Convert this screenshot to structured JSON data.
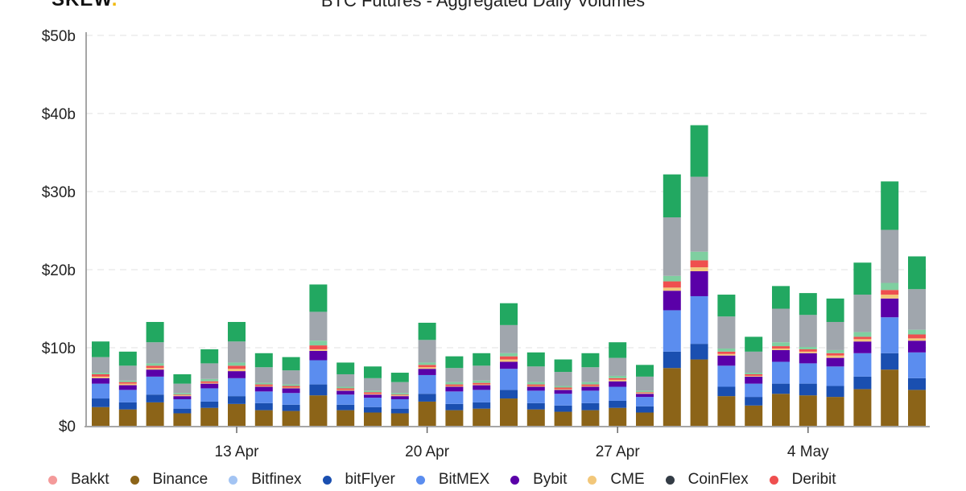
{
  "logo": "SKEW",
  "chart_data": {
    "type": "bar",
    "stacked": true,
    "title": "BTC Futures - Aggregated Daily Volumes",
    "ylim": [
      0,
      50
    ],
    "y_ticks": [
      "$0",
      "$10b",
      "$20b",
      "$30b",
      "$40b",
      "$50b"
    ],
    "y_tick_values": [
      0,
      10,
      20,
      30,
      40,
      50
    ],
    "x_ticks": [
      {
        "label": "13 Apr",
        "date": "13 Apr"
      },
      {
        "label": "20 Apr",
        "date": "20 Apr"
      },
      {
        "label": "27 Apr",
        "date": "27 Apr"
      },
      {
        "label": "4 May",
        "date": "4 May"
      }
    ],
    "grid": "horizontal-dashed",
    "legend_placement": "bottom",
    "unit": "$b",
    "categories": [
      "8 Apr",
      "9 Apr",
      "10 Apr",
      "11 Apr",
      "12 Apr",
      "13 Apr",
      "14 Apr",
      "15 Apr",
      "16 Apr",
      "17 Apr",
      "18 Apr",
      "19 Apr",
      "20 Apr",
      "21 Apr",
      "22 Apr",
      "23 Apr",
      "24 Apr",
      "25 Apr",
      "26 Apr",
      "27 Apr",
      "28 Apr",
      "29 Apr",
      "30 Apr",
      "1 May",
      "2 May",
      "3 May",
      "4 May",
      "5 May",
      "6 May",
      "7 May",
      "8 May"
    ],
    "series": [
      {
        "name": "Binance",
        "color": "#8c6418",
        "values": [
          2.4,
          2.1,
          3.0,
          1.6,
          2.3,
          2.8,
          2.0,
          1.9,
          3.9,
          2.0,
          1.7,
          1.6,
          3.1,
          2.0,
          2.2,
          3.5,
          2.1,
          1.8,
          2.0,
          2.3,
          1.7,
          7.4,
          8.5,
          3.8,
          2.6,
          4.1,
          3.9,
          3.7,
          4.7,
          7.2,
          4.6
        ]
      },
      {
        "name": "bitFlyer",
        "color": "#1a4fb0",
        "values": [
          1.1,
          0.9,
          1.0,
          0.6,
          0.8,
          1.0,
          0.9,
          0.8,
          1.4,
          0.7,
          0.7,
          0.6,
          1.0,
          0.8,
          0.8,
          1.1,
          0.8,
          0.8,
          0.9,
          0.9,
          0.8,
          2.1,
          2.0,
          1.2,
          1.1,
          1.3,
          1.5,
          1.4,
          1.6,
          2.1,
          1.5
        ]
      },
      {
        "name": "BitMEX",
        "color": "#5b8def",
        "values": [
          1.9,
          1.6,
          2.3,
          1.2,
          1.7,
          2.3,
          1.5,
          1.5,
          3.1,
          1.3,
          1.2,
          1.2,
          2.4,
          1.6,
          1.6,
          2.7,
          1.6,
          1.5,
          1.6,
          1.8,
          1.2,
          5.3,
          6.1,
          2.7,
          1.7,
          2.8,
          2.6,
          2.5,
          3.0,
          4.6,
          3.3
        ]
      },
      {
        "name": "Bybit",
        "color": "#5a00a8",
        "values": [
          0.7,
          0.6,
          0.9,
          0.4,
          0.6,
          0.9,
          0.6,
          0.6,
          1.2,
          0.5,
          0.4,
          0.4,
          0.8,
          0.6,
          0.6,
          0.9,
          0.5,
          0.5,
          0.5,
          0.7,
          0.4,
          2.5,
          3.2,
          1.3,
          0.9,
          1.5,
          1.3,
          1.1,
          1.5,
          2.4,
          1.5
        ]
      },
      {
        "name": "CME",
        "color": "#f2c77a",
        "values": [
          0.2,
          0.2,
          0.2,
          0.1,
          0.1,
          0.3,
          0.1,
          0.1,
          0.2,
          0.1,
          0.1,
          0.1,
          0.2,
          0.1,
          0.1,
          0.3,
          0.1,
          0.1,
          0.1,
          0.2,
          0.1,
          0.4,
          0.5,
          0.2,
          0.1,
          0.2,
          0.2,
          0.3,
          0.3,
          0.5,
          0.3
        ]
      },
      {
        "name": "Deribit",
        "color": "#ef4f4f",
        "values": [
          0.3,
          0.2,
          0.3,
          0.1,
          0.2,
          0.4,
          0.2,
          0.2,
          0.5,
          0.2,
          0.2,
          0.1,
          0.3,
          0.2,
          0.2,
          0.4,
          0.2,
          0.2,
          0.2,
          0.2,
          0.1,
          0.8,
          0.9,
          0.3,
          0.2,
          0.3,
          0.3,
          0.3,
          0.3,
          0.6,
          0.5
        ]
      },
      {
        "color": "#7fcfa0",
        "values": [
          0.2,
          0.2,
          0.3,
          0.2,
          0.3,
          0.4,
          0.2,
          0.2,
          0.6,
          0.2,
          0.2,
          0.2,
          0.3,
          0.3,
          0.3,
          0.4,
          0.3,
          0.2,
          0.3,
          0.3,
          0.2,
          0.7,
          1.1,
          0.4,
          0.2,
          0.5,
          0.3,
          0.4,
          0.6,
          0.9,
          0.6
        ]
      },
      {
        "color": "#a0a6ad",
        "values": [
          2.0,
          1.9,
          2.7,
          1.2,
          2.0,
          2.7,
          2.0,
          1.8,
          3.7,
          1.6,
          1.6,
          1.4,
          2.9,
          1.8,
          1.9,
          3.6,
          2.0,
          1.8,
          1.9,
          2.3,
          1.8,
          7.5,
          9.6,
          4.1,
          2.7,
          4.3,
          4.1,
          3.6,
          4.8,
          6.8,
          5.2
        ]
      },
      {
        "color": "#22a861",
        "values": [
          2.0,
          1.8,
          2.6,
          1.2,
          1.8,
          2.5,
          1.8,
          1.7,
          3.5,
          1.5,
          1.5,
          1.2,
          2.2,
          1.5,
          1.6,
          2.8,
          1.8,
          1.6,
          1.8,
          2.0,
          1.5,
          5.5,
          6.6,
          2.8,
          1.9,
          2.9,
          2.8,
          3.0,
          4.1,
          6.2,
          4.2
        ]
      }
    ],
    "legend": [
      {
        "name": "Bakkt",
        "color": "#f49a9a"
      },
      {
        "name": "Binance",
        "color": "#8c6418"
      },
      {
        "name": "Bitfinex",
        "color": "#a3c4f3"
      },
      {
        "name": "bitFlyer",
        "color": "#1a4fb0"
      },
      {
        "name": "BitMEX",
        "color": "#5b8def"
      },
      {
        "name": "Bybit",
        "color": "#5a00a8"
      },
      {
        "name": "CME",
        "color": "#f2c77a"
      },
      {
        "name": "CoinFlex",
        "color": "#333c45"
      },
      {
        "name": "Deribit",
        "color": "#ef4f4f"
      }
    ]
  }
}
